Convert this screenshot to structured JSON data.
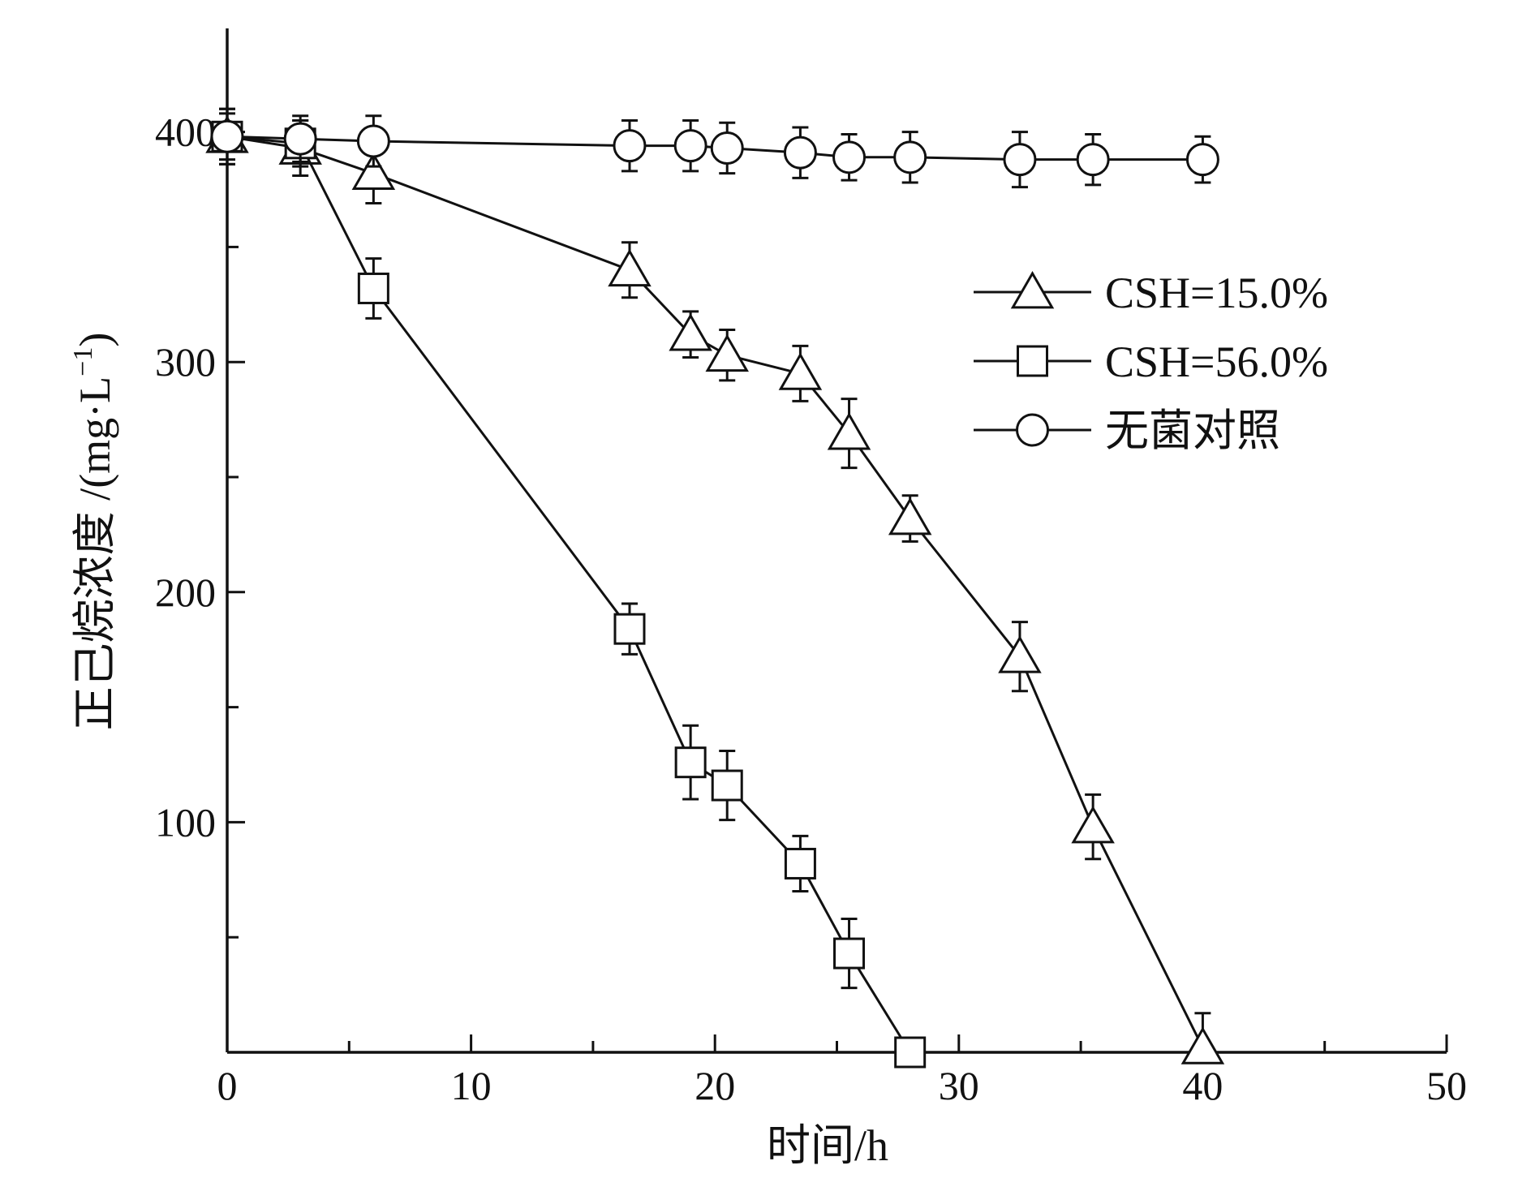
{
  "chart_data": {
    "type": "line",
    "title": "",
    "xlabel": "时间/h",
    "ylabel": "正己烷浓度 /(mg·L",
    "ylabel_sup": "−1",
    "ylabel_close": ")",
    "xlim": [
      0,
      50
    ],
    "ylim": [
      0,
      445
    ],
    "x_ticks": [
      0,
      10,
      20,
      30,
      40,
      50
    ],
    "x_tick_labels": [
      "0",
      "10",
      "20",
      "30",
      "40",
      "50"
    ],
    "x_minor_ticks": [
      5,
      15,
      25,
      35,
      45
    ],
    "y_ticks": [
      100,
      200,
      300,
      400
    ],
    "y_tick_labels": [
      "100",
      "200",
      "300",
      "400"
    ],
    "y_minor_ticks": [
      50,
      150,
      250,
      350
    ],
    "grid": false,
    "legend_position": "right-middle",
    "series": [
      {
        "name": "CSH=15.0%",
        "marker": "triangle",
        "x": [
          0,
          3,
          6,
          16.5,
          19,
          20.5,
          23.5,
          25.5,
          28,
          32.5,
          35.5,
          40
        ],
        "y": [
          398,
          393,
          382,
          340,
          312,
          303,
          295,
          269,
          232,
          172,
          98,
          2
        ],
        "err": [
          12,
          12,
          13,
          12,
          10,
          11,
          12,
          15,
          10,
          15,
          14,
          15
        ]
      },
      {
        "name": "CSH=56.0%",
        "marker": "square",
        "x": [
          0,
          3,
          6,
          16.5,
          19,
          20.5,
          23.5,
          25.5,
          28
        ],
        "y": [
          398,
          395,
          332,
          184,
          126,
          116,
          82,
          43,
          0
        ],
        "err": [
          12,
          10,
          13,
          11,
          16,
          15,
          12,
          15,
          0
        ]
      },
      {
        "name": "无菌对照",
        "marker": "circle",
        "x": [
          0,
          3,
          6,
          16.5,
          19,
          20.5,
          23.5,
          25.5,
          28,
          32.5,
          35.5,
          40
        ],
        "y": [
          398,
          397,
          396,
          394,
          394,
          393,
          391,
          389,
          389,
          388,
          388,
          388
        ],
        "err": [
          10,
          10,
          11,
          11,
          11,
          11,
          11,
          10,
          11,
          12,
          11,
          10
        ]
      }
    ]
  }
}
